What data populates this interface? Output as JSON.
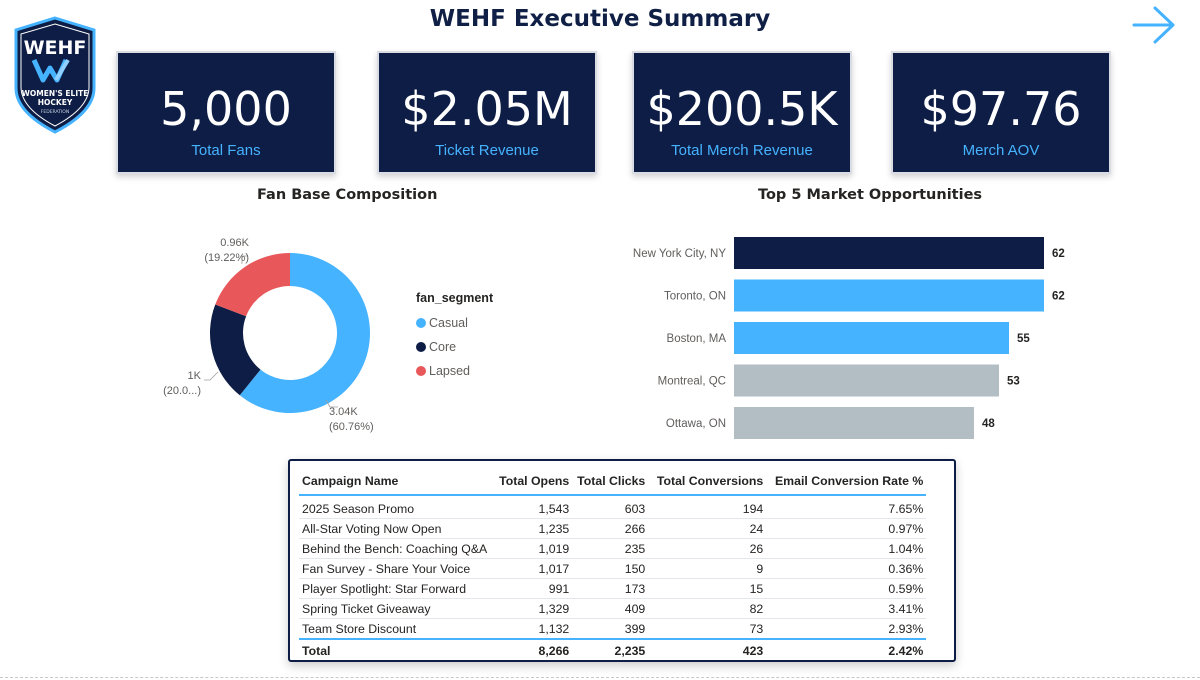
{
  "header": {
    "title": "WEHF Executive Summary",
    "logo": {
      "abbr": "WEHF",
      "line1": "WOMEN'S ELITE",
      "line2": "HOCKEY",
      "line3": "FEDERATION"
    },
    "nav_icon": "arrow-right-icon"
  },
  "kpis": [
    {
      "value": "5,000",
      "label": "Total Fans"
    },
    {
      "value": "$2.05M",
      "label": "Ticket Revenue"
    },
    {
      "value": "$200.5K",
      "label": "Total Merch Revenue"
    },
    {
      "value": "$97.76",
      "label": "Merch AOV"
    }
  ],
  "colors": {
    "navy": "#0e1d45",
    "blue": "#45b3ff",
    "red": "#e8575a",
    "gray": "#b3bdc4",
    "kpi_label": "#45b3ff"
  },
  "fan_chart": {
    "title": "Fan Base Composition",
    "legend_title": "fan_segment",
    "legend": [
      {
        "label": "Casual",
        "color": "#45b3ff"
      },
      {
        "label": "Core",
        "color": "#0e1d45"
      },
      {
        "label": "Lapsed",
        "color": "#e8575a"
      }
    ],
    "labels": [
      {
        "line1": "3.04K",
        "line2": "(60.76%)"
      },
      {
        "line1": "1K",
        "line2": "(20.0...)"
      },
      {
        "line1": "0.96K",
        "line2": "(19.22%)"
      }
    ]
  },
  "market_chart": {
    "title": "Top 5 Market Opportunities"
  },
  "chart_data": [
    {
      "type": "pie",
      "title": "Fan Base Composition",
      "legend_title": "fan_segment",
      "donut": true,
      "slices": [
        {
          "label": "Casual",
          "value": 3.04,
          "percent": 60.76,
          "color": "#45b3ff"
        },
        {
          "label": "Core",
          "value": 1.0,
          "percent": 20.02,
          "color": "#0e1d45"
        },
        {
          "label": "Lapsed",
          "value": 0.96,
          "percent": 19.22,
          "color": "#e8575a"
        }
      ],
      "unit": "K"
    },
    {
      "type": "bar",
      "orientation": "horizontal",
      "title": "Top 5 Market Opportunities",
      "categories": [
        "New York City, NY",
        "Toronto, ON",
        "Boston, MA",
        "Montreal, QC",
        "Ottawa, ON"
      ],
      "values": [
        62,
        62,
        55,
        53,
        48
      ],
      "colors": [
        "#0e1d45",
        "#45b3ff",
        "#45b3ff",
        "#b3bdc4",
        "#b3bdc4"
      ],
      "xlim": [
        0,
        62
      ]
    }
  ],
  "campaign_table": {
    "headers": [
      "Campaign Name",
      "Total Opens",
      "Total Clicks",
      "Total Conversions",
      "Email Conversion Rate %"
    ],
    "rows": [
      [
        "2025 Season Promo",
        "1,543",
        "603",
        "194",
        "7.65%"
      ],
      [
        "All-Star Voting Now Open",
        "1,235",
        "266",
        "24",
        "0.97%"
      ],
      [
        "Behind the Bench: Coaching Q&A",
        "1,019",
        "235",
        "26",
        "1.04%"
      ],
      [
        "Fan Survey - Share Your Voice",
        "1,017",
        "150",
        "9",
        "0.36%"
      ],
      [
        "Player Spotlight: Star Forward",
        "991",
        "173",
        "15",
        "0.59%"
      ],
      [
        "Spring Ticket Giveaway",
        "1,329",
        "409",
        "82",
        "3.41%"
      ],
      [
        "Team Store Discount",
        "1,132",
        "399",
        "73",
        "2.93%"
      ]
    ],
    "total": [
      "Total",
      "8,266",
      "2,235",
      "423",
      "2.42%"
    ]
  }
}
